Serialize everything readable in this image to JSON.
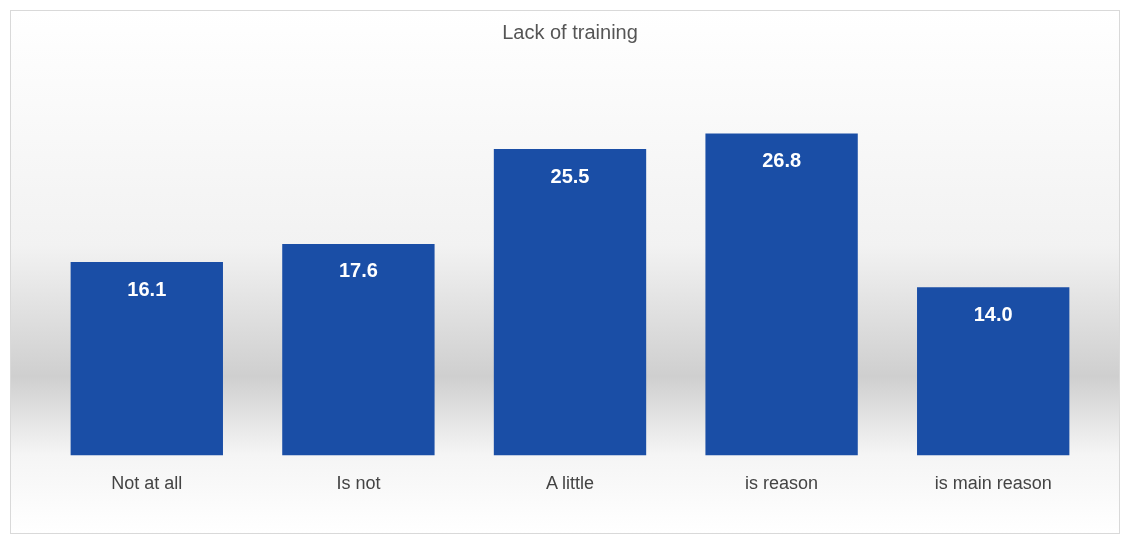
{
  "chart_data": {
    "type": "bar",
    "title": "Lack of training",
    "categories": [
      "Not at all",
      "Is not",
      "A little",
      "is reason",
      "is main reason"
    ],
    "values": [
      16.1,
      17.6,
      25.5,
      26.8,
      14.0
    ],
    "value_labels": [
      "16.1",
      "17.6",
      "25.5",
      "26.8",
      "14.0"
    ],
    "color": "#1a4ea6",
    "grid": false,
    "legend": false
  }
}
